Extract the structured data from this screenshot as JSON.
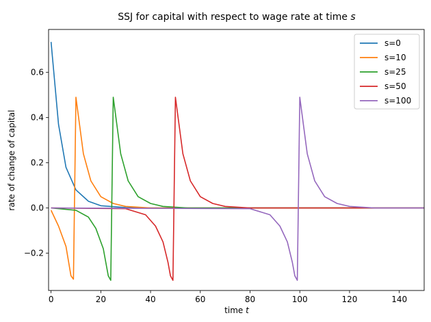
{
  "chart_data": {
    "type": "line",
    "title_prefix": "SSJ for capital with respect to wage rate at time ",
    "title_var": "s",
    "xlabel_prefix": "time ",
    "xlabel_var": "t",
    "ylabel": "rate of change of capital",
    "xlim": [
      -1,
      150
    ],
    "ylim": [
      -0.365,
      0.79
    ],
    "xticks": [
      0,
      20,
      40,
      60,
      80,
      100,
      120,
      140
    ],
    "yticks": [
      -0.2,
      0.0,
      0.2,
      0.4,
      0.6
    ],
    "ytick_labels": [
      "−0.2",
      "0.0",
      "0.2",
      "0.4",
      "0.6"
    ],
    "grid": false,
    "legend_position": "top-right",
    "series": [
      {
        "name": "s=0",
        "color": "#1f77b4",
        "s": 0,
        "peak": 0.735,
        "points": [
          [
            0,
            0.735
          ],
          [
            3,
            0.37
          ],
          [
            6,
            0.18
          ],
          [
            10,
            0.08
          ],
          [
            15,
            0.03
          ],
          [
            20,
            0.01
          ],
          [
            30,
            0.002
          ],
          [
            40,
            0.0
          ],
          [
            150,
            0.0
          ]
        ]
      },
      {
        "name": "s=10",
        "color": "#ff7f0e",
        "s": 10,
        "peak": 0.49,
        "points": [
          [
            0,
            -0.01
          ],
          [
            3,
            -0.08
          ],
          [
            6,
            -0.17
          ],
          [
            8,
            -0.3
          ],
          [
            9,
            -0.315
          ],
          [
            10,
            0.49
          ],
          [
            13,
            0.24
          ],
          [
            16,
            0.12
          ],
          [
            20,
            0.05
          ],
          [
            25,
            0.02
          ],
          [
            30,
            0.007
          ],
          [
            40,
            0.0
          ],
          [
            150,
            0.0
          ]
        ]
      },
      {
        "name": "s=25",
        "color": "#2ca02c",
        "s": 25,
        "peak": 0.49,
        "points": [
          [
            0,
            0.0
          ],
          [
            10,
            -0.01
          ],
          [
            15,
            -0.04
          ],
          [
            18,
            -0.09
          ],
          [
            21,
            -0.18
          ],
          [
            23,
            -0.3
          ],
          [
            24,
            -0.32
          ],
          [
            25,
            0.49
          ],
          [
            28,
            0.24
          ],
          [
            31,
            0.12
          ],
          [
            35,
            0.05
          ],
          [
            40,
            0.02
          ],
          [
            45,
            0.007
          ],
          [
            55,
            0.0
          ],
          [
            150,
            0.0
          ]
        ]
      },
      {
        "name": "s=50",
        "color": "#d62728",
        "s": 50,
        "peak": 0.49,
        "points": [
          [
            0,
            0.0
          ],
          [
            30,
            -0.003
          ],
          [
            38,
            -0.03
          ],
          [
            42,
            -0.08
          ],
          [
            45,
            -0.15
          ],
          [
            47,
            -0.24
          ],
          [
            48,
            -0.3
          ],
          [
            49,
            -0.32
          ],
          [
            50,
            0.49
          ],
          [
            53,
            0.24
          ],
          [
            56,
            0.12
          ],
          [
            60,
            0.05
          ],
          [
            65,
            0.02
          ],
          [
            70,
            0.007
          ],
          [
            80,
            0.0
          ],
          [
            150,
            0.0
          ]
        ]
      },
      {
        "name": "s=100",
        "color": "#9467bd",
        "s": 100,
        "peak": 0.49,
        "points": [
          [
            0,
            0.0
          ],
          [
            80,
            -0.003
          ],
          [
            88,
            -0.03
          ],
          [
            92,
            -0.08
          ],
          [
            95,
            -0.15
          ],
          [
            97,
            -0.24
          ],
          [
            98,
            -0.3
          ],
          [
            99,
            -0.32
          ],
          [
            100,
            0.49
          ],
          [
            103,
            0.24
          ],
          [
            106,
            0.12
          ],
          [
            110,
            0.05
          ],
          [
            115,
            0.02
          ],
          [
            120,
            0.007
          ],
          [
            130,
            0.0
          ],
          [
            150,
            0.0
          ]
        ]
      }
    ]
  }
}
